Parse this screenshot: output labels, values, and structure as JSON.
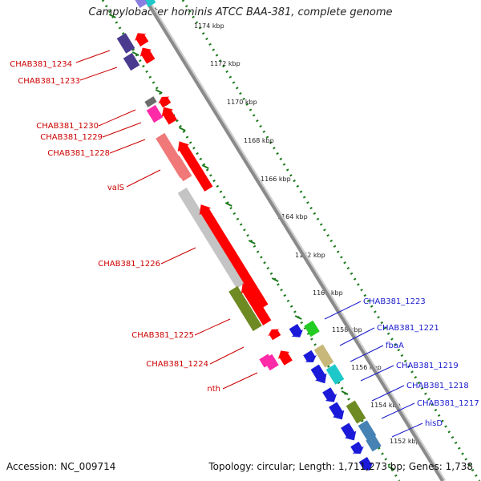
{
  "title": "Campylobacter hominis ATCC BAA-381, complete genome",
  "footer": {
    "accession": "Accession: NC_009714",
    "topology": "Topology: circular; Length: 1,711,273 bp; Genes: 1,738"
  },
  "colors": {
    "reverse_label": "#cc0000",
    "forward_label": "#1a1acc",
    "backbone": "#8a8a8a",
    "dots": "#1a7a1a"
  },
  "kbp_ticks": [
    "1174 kbp",
    "1172 kbp",
    "1170 kbp",
    "1168 kbp",
    "1166 kbp",
    "1164 kbp",
    "1162 kbp",
    "1160 kbp",
    "1158 kbp",
    "1156 kbp",
    "1154 kbp",
    "1152 kbp"
  ],
  "reverse_genes": [
    {
      "label": "CHAB381_1234",
      "color": "#4b3b8f"
    },
    {
      "label": "CHAB381_1233",
      "color": "#4b3b8f"
    },
    {
      "label": "CHAB381_1230",
      "color": "#6b6b6b"
    },
    {
      "label": "CHAB381_1229",
      "color": "#ff2aa8"
    },
    {
      "label": "CHAB381_1228",
      "color": "#f07878"
    },
    {
      "label": "valS",
      "color": "#f07878"
    },
    {
      "label": "CHAB381_1226",
      "color": "#c4c4c4"
    },
    {
      "label": "CHAB381_1225",
      "color": "#6e8a22"
    },
    {
      "label": "CHAB381_1224",
      "color": "#ff2aa8"
    },
    {
      "label": "nth",
      "color": "#ff2aa8"
    }
  ],
  "forward_genes": [
    {
      "label": "CHAB381_1223",
      "color": "#22cc22"
    },
    {
      "label": "CHAB381_1221",
      "color": "#c8b87a"
    },
    {
      "label": "fbaA",
      "color": "#1ec8c8"
    },
    {
      "label": "CHAB381_1219",
      "color": "#1ec8c8"
    },
    {
      "label": "CHAB381_1218",
      "color": "#6e8a22"
    },
    {
      "label": "CHAB381_1217",
      "color": "#4682b4"
    },
    {
      "label": "hisD",
      "color": "#4682b4"
    }
  ]
}
